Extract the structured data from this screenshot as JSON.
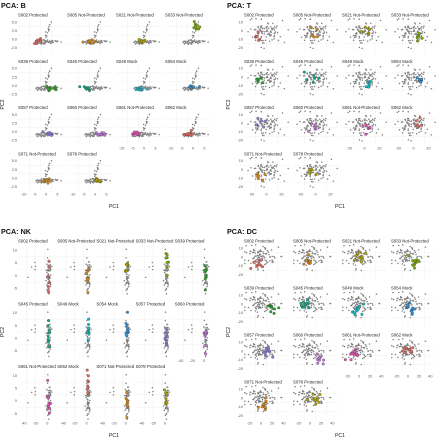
{
  "colors": {
    "background_points": "#808080",
    "panel_bg": "#ffffff",
    "grid": "#ececec",
    "groups": [
      "#e0675f",
      "#d4881c",
      "#b0a000",
      "#7aab00",
      "#2ca02c",
      "#16a887",
      "#19b6c4",
      "#2d8fd4",
      "#8c7ad8",
      "#c473d8",
      "#e04fb4"
    ]
  },
  "panels": [
    {
      "title": "PCA: B",
      "xlabel": "PC1",
      "ylabel": "PC2",
      "xticks": [
        "-10",
        "-5",
        "0",
        "5"
      ],
      "yticks": [
        "-2.5",
        "0.0",
        "2.5",
        "5.0"
      ],
      "xlim": [
        -14,
        8
      ],
      "ylim": [
        -3.5,
        6.5
      ],
      "subplots": [
        "S002 Protected",
        "S005 Not-Protected",
        "S021 Not-Protected",
        "S033 Not-Protected",
        "S039 Protected",
        "S045 Protected",
        "S049 Mock",
        "S054 Mock",
        "S057 Protected",
        "S060 Protected",
        "S061 Not-Protected",
        "S062 Mock",
        "S071 Not-Protected",
        "S078 Protected"
      ]
    },
    {
      "title": "PCA: T",
      "xlabel": "PC1",
      "ylabel": "PC2",
      "xticks": [
        "-20",
        "0",
        "20"
      ],
      "yticks": [
        "-20",
        "-10",
        "0",
        "10"
      ],
      "xlim": [
        -30,
        30
      ],
      "ylim": [
        -25,
        18
      ],
      "subplots": [
        "S002 Protected",
        "S005 Not-Protected",
        "S021 Not-Protected",
        "S033 Not-Protected",
        "S039 Protected",
        "S045 Protected",
        "S049 Mock",
        "S054 Mock",
        "S057 Protected",
        "S060 Protected",
        "S061 Not-Protected",
        "S062 Mock",
        "S071 Not-Protected",
        "S078 Protected"
      ]
    },
    {
      "title": "PCA: NK",
      "xlabel": "PC1",
      "ylabel": "PC2",
      "xticks": [
        "-40",
        "-20",
        "0"
      ],
      "yticks": [
        "-5",
        "0",
        "5",
        "10"
      ],
      "xlim": [
        -50,
        12
      ],
      "ylim": [
        -8,
        13
      ],
      "subplots": [
        "S002 Protected",
        "S005 Not-Protected",
        "S021 Not-Protected",
        "S033 Not-Protected",
        "S039 Protected",
        "S045 Protected",
        "S049 Mock",
        "S054 Mock",
        "S057 Protected",
        "S060 Protected",
        "S061 Not-Protected",
        "S062 Mock",
        "S071 Not-Protected",
        "S078 Protected"
      ]
    },
    {
      "title": "PCA: DC",
      "xlabel": "PC1",
      "ylabel": "PC2",
      "xticks": [
        "-20",
        "0",
        "20",
        "40"
      ],
      "yticks": [
        "-20",
        "-10",
        "0",
        "10"
      ],
      "xlim": [
        -30,
        48
      ],
      "ylim": [
        -25,
        15
      ],
      "subplots": [
        "S002 Protected",
        "S005 Not-Protected",
        "S021 Not-Protected",
        "S033 Not-Protected",
        "S039 Protected",
        "S045 Protected",
        "S049 Mock",
        "S054 Mock",
        "S057 Protected",
        "S060 Protected",
        "S061 Not-Protected",
        "S062 Mock",
        "S071 Not-Protected",
        "S078 Protected"
      ]
    }
  ]
}
